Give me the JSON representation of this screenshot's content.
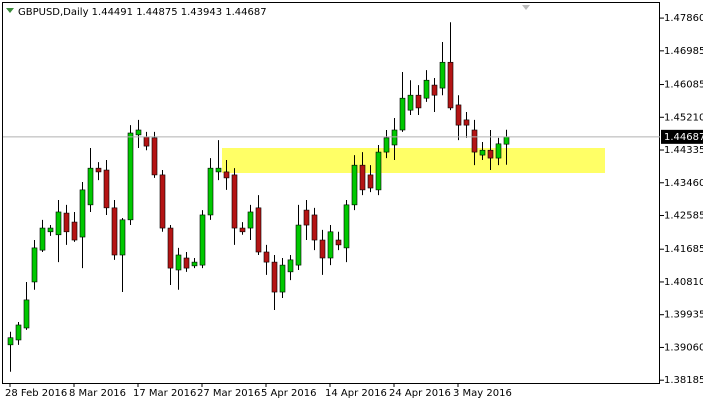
{
  "chart_data": {
    "type": "candlestick",
    "title": "GBPUSD,Daily  1.44491 1.44875 1.43943 1.44687",
    "categories": [
      "28 Feb 2016",
      null,
      null,
      null,
      null,
      null,
      null,
      null,
      "8 Mar 2016",
      null,
      null,
      null,
      null,
      null,
      null,
      null,
      "17 Mar 2016",
      null,
      null,
      null,
      null,
      null,
      null,
      null,
      "27 Mar 2016",
      null,
      null,
      null,
      null,
      null,
      null,
      null,
      "5 Apr 2016",
      null,
      null,
      null,
      null,
      null,
      null,
      null,
      "14 Apr 2016",
      null,
      null,
      null,
      null,
      null,
      null,
      null,
      "24 Apr 2016",
      null,
      null,
      null,
      null,
      null,
      null,
      null,
      "3 May 2016",
      null,
      null,
      null,
      null,
      null,
      null
    ],
    "open": [
      1.3913,
      1.3926,
      1.3958,
      1.4081,
      1.4166,
      1.4215,
      1.4207,
      1.4265,
      1.4241,
      1.4201,
      1.4287,
      1.4385,
      1.438,
      1.4279,
      1.4153,
      1.4247,
      1.4474,
      1.4468,
      1.4466,
      1.4367,
      1.4225,
      1.4113,
      1.4145,
      1.4124,
      1.4126,
      1.426,
      1.4375,
      1.4375,
      1.4367,
      1.4225,
      1.4225,
      1.4279,
      1.4161,
      1.4134,
      1.4054,
      1.4108,
      1.4126,
      1.4273,
      1.426,
      1.4193,
      1.4145,
      1.4193,
      1.4172,
      1.4287,
      1.4393,
      1.4367,
      1.4327,
      1.4428,
      1.4447,
      1.4487,
      1.454,
      1.458,
      1.4572,
      1.4607,
      1.4599,
      1.4668,
      1.4554,
      1.4514,
      1.4487,
      1.442,
      1.4433,
      1.4412,
      1.44491
    ],
    "high": [
      1.3948,
      1.3974,
      1.4081,
      1.4193,
      1.4247,
      1.4233,
      1.43,
      1.4287,
      1.4268,
      1.4348,
      1.4439,
      1.4401,
      1.4407,
      1.43,
      1.4252,
      1.45,
      1.4514,
      1.4482,
      1.4482,
      1.438,
      1.4233,
      1.4172,
      1.4161,
      1.4145,
      1.4273,
      1.4412,
      1.446,
      1.4407,
      1.4385,
      1.4241,
      1.4287,
      1.4313,
      1.418,
      1.4153,
      1.4145,
      1.4153,
      1.4287,
      1.43,
      1.4279,
      1.422,
      1.4233,
      1.4215,
      1.43,
      1.442,
      1.4428,
      1.4393,
      1.4447,
      1.4487,
      1.4519,
      1.4642,
      1.462,
      1.4607,
      1.4647,
      1.4626,
      1.4722,
      1.4775,
      1.458,
      1.4535,
      1.4514,
      1.4455,
      1.4487,
      1.4466,
      1.44875
    ],
    "low": [
      1.3841,
      1.3913,
      1.3953,
      1.406,
      1.4161,
      1.4204,
      1.4134,
      1.418,
      1.4188,
      1.4118,
      1.4268,
      1.4353,
      1.426,
      1.414,
      1.4054,
      1.4233,
      1.4439,
      1.4433,
      1.4359,
      1.4215,
      1.4073,
      1.406,
      1.4108,
      1.4118,
      1.4118,
      1.4247,
      1.4353,
      1.4327,
      1.418,
      1.4207,
      1.4193,
      1.4153,
      1.41,
      1.4006,
      1.4038,
      1.4086,
      1.4113,
      1.4193,
      1.4166,
      1.41,
      1.4126,
      1.4166,
      1.4134,
      1.4273,
      1.4313,
      1.4321,
      1.4313,
      1.4412,
      1.4407,
      1.4482,
      1.4527,
      1.4527,
      1.4562,
      1.4535,
      1.458,
      1.454,
      1.446,
      1.4466,
      1.4393,
      1.4407,
      1.438,
      1.4393,
      1.43943
    ],
    "close": [
      1.3932,
      1.3966,
      1.4033,
      1.4172,
      1.4225,
      1.4225,
      1.4268,
      1.4215,
      1.4193,
      1.4327,
      1.4385,
      1.4375,
      1.4279,
      1.4153,
      1.4247,
      1.4479,
      1.4487,
      1.4444,
      1.4367,
      1.4225,
      1.4118,
      1.4153,
      1.4118,
      1.4134,
      1.426,
      1.4385,
      1.4385,
      1.4359,
      1.4225,
      1.4215,
      1.4268,
      1.4161,
      1.4134,
      1.4054,
      1.4126,
      1.414,
      1.4233,
      1.4233,
      1.4193,
      1.4145,
      1.4215,
      1.418,
      1.4287,
      1.4393,
      1.4327,
      1.4332,
      1.4428,
      1.4466,
      1.4487,
      1.4572,
      1.458,
      1.4546,
      1.462,
      1.458,
      1.4668,
      1.4546,
      1.45,
      1.45,
      1.4428,
      1.4433,
      1.4412,
      1.445,
      1.44687
    ],
    "up_color": "#00c800",
    "down_color": "#b41414",
    "ylim": [
      1.3811,
      1.4829
    ],
    "yticks": [
      {
        "value": 1.4786,
        "label": "1.47860"
      },
      1.46985,
      1.46085,
      {
        "value": 1.4521,
        "label": "1.45210"
      },
      1.44335,
      {
        "value": 1.4346,
        "label": "1.43460"
      },
      1.42585,
      1.41685,
      {
        "value": 1.4081,
        "label": "1.40810"
      },
      1.39935,
      {
        "value": 1.3906,
        "label": "1.39060"
      },
      1.38185
    ]
  }
}
